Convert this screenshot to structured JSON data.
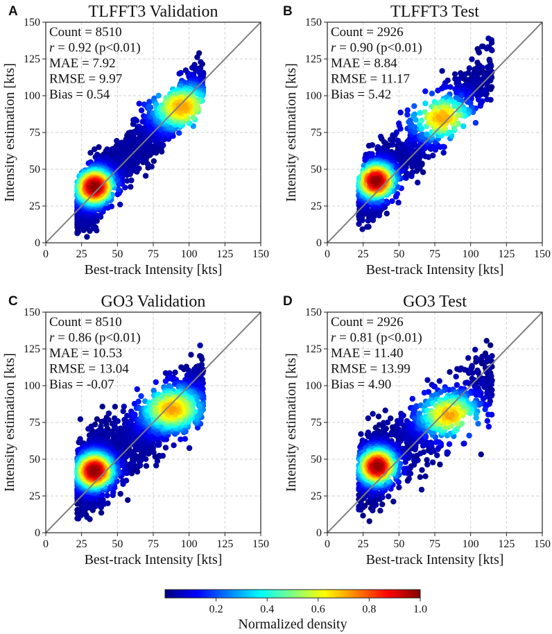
{
  "colorbar": {
    "label": "Normalized density",
    "ticks": [
      "0.2",
      "0.4",
      "0.6",
      "0.8",
      "1.0"
    ],
    "tick_values": [
      0.2,
      0.4,
      0.6,
      0.8,
      1.0
    ],
    "range": [
      0.0,
      1.0
    ],
    "colormap": "jet"
  },
  "chart_data": [
    {
      "type": "scatter",
      "panel": "A",
      "title": "TLFFT3 Validation",
      "xlabel": "Best-track Intensity [kts]",
      "ylabel": "Intensity estimation [kts]",
      "xlim": [
        0,
        150
      ],
      "ylim": [
        0,
        150
      ],
      "xticks": [
        "0",
        "25",
        "50",
        "75",
        "100",
        "125",
        "150"
      ],
      "yticks": [
        "0",
        "25",
        "50",
        "75",
        "100",
        "125",
        "150"
      ],
      "grid": true,
      "reference_line": "y = x",
      "stats": {
        "count": "Count = 8510",
        "r_label": "r",
        "r_value": " = 0.92 (p<0.01)",
        "mae": "MAE = 7.92",
        "rmse": "RMSE = 9.97",
        "bias": "Bias = 0.54"
      },
      "point_cloud": {
        "n_points": 2600,
        "x_range": [
          22,
          110
        ],
        "x_mode": 33,
        "slope": 0.96,
        "intercept": 3.5,
        "spread": 8.5,
        "density_peak": [
          34,
          38
        ],
        "secondary_peak": [
          95,
          92
        ]
      }
    },
    {
      "type": "scatter",
      "panel": "B",
      "title": "TLFFT3 Test",
      "xlabel": "Best-track Intensity [kts]",
      "ylabel": "Intensity estimation [kts]",
      "xlim": [
        0,
        150
      ],
      "ylim": [
        0,
        150
      ],
      "xticks": [
        "0",
        "25",
        "50",
        "75",
        "100",
        "125",
        "150"
      ],
      "yticks": [
        "0",
        "25",
        "50",
        "75",
        "100",
        "125",
        "150"
      ],
      "grid": true,
      "reference_line": "y = x",
      "stats": {
        "count": "Count = 2926",
        "r_label": "r",
        "r_value": " = 0.90 (p<0.01)",
        "mae": "MAE = 8.84",
        "rmse": "RMSE = 11.17",
        "bias": "Bias = 5.42"
      },
      "point_cloud": {
        "n_points": 1300,
        "x_range": [
          22,
          115
        ],
        "x_mode": 34,
        "slope": 0.95,
        "intercept": 9,
        "spread": 10,
        "density_peak": [
          34,
          42
        ],
        "secondary_peak": [
          80,
          85
        ]
      }
    },
    {
      "type": "scatter",
      "panel": "C",
      "title": "GO3 Validation",
      "xlabel": "Best-track Intensity [kts]",
      "ylabel": "Intensity estimation [kts]",
      "xlim": [
        0,
        150
      ],
      "ylim": [
        0,
        150
      ],
      "xticks": [
        "0",
        "25",
        "50",
        "75",
        "100",
        "125",
        "150"
      ],
      "yticks": [
        "0",
        "25",
        "50",
        "75",
        "100",
        "125",
        "150"
      ],
      "grid": true,
      "reference_line": "y = x",
      "stats": {
        "count": "Count = 8510",
        "r_label": "r",
        "r_value": " = 0.86 (p<0.01)",
        "mae": "MAE = 10.53",
        "rmse": "RMSE = 13.04",
        "bias": "Bias = -0.07"
      },
      "point_cloud": {
        "n_points": 2600,
        "x_range": [
          22,
          110
        ],
        "x_mode": 33,
        "slope": 0.72,
        "intercept": 19,
        "spread": 11,
        "density_peak": [
          34,
          42
        ],
        "secondary_peak": [
          88,
          84
        ]
      }
    },
    {
      "type": "scatter",
      "panel": "D",
      "title": "GO3 Test",
      "xlabel": "Best-track Intensity [kts]",
      "ylabel": "Intensity estimation [kts]",
      "xlim": [
        0,
        150
      ],
      "ylim": [
        0,
        150
      ],
      "xticks": [
        "0",
        "25",
        "50",
        "75",
        "100",
        "125",
        "150"
      ],
      "yticks": [
        "0",
        "25",
        "50",
        "75",
        "100",
        "125",
        "150"
      ],
      "grid": true,
      "reference_line": "y = x",
      "stats": {
        "count": "Count = 2926",
        "r_label": "r",
        "r_value": " = 0.81 (p<0.01)",
        "mae": "MAE = 11.40",
        "rmse": "RMSE = 13.99",
        "bias": "Bias = 4.90"
      },
      "point_cloud": {
        "n_points": 1300,
        "x_range": [
          22,
          115
        ],
        "x_mode": 34,
        "slope": 0.72,
        "intercept": 21,
        "spread": 12,
        "density_peak": [
          35,
          45
        ],
        "secondary_peak": [
          85,
          80
        ]
      }
    }
  ]
}
